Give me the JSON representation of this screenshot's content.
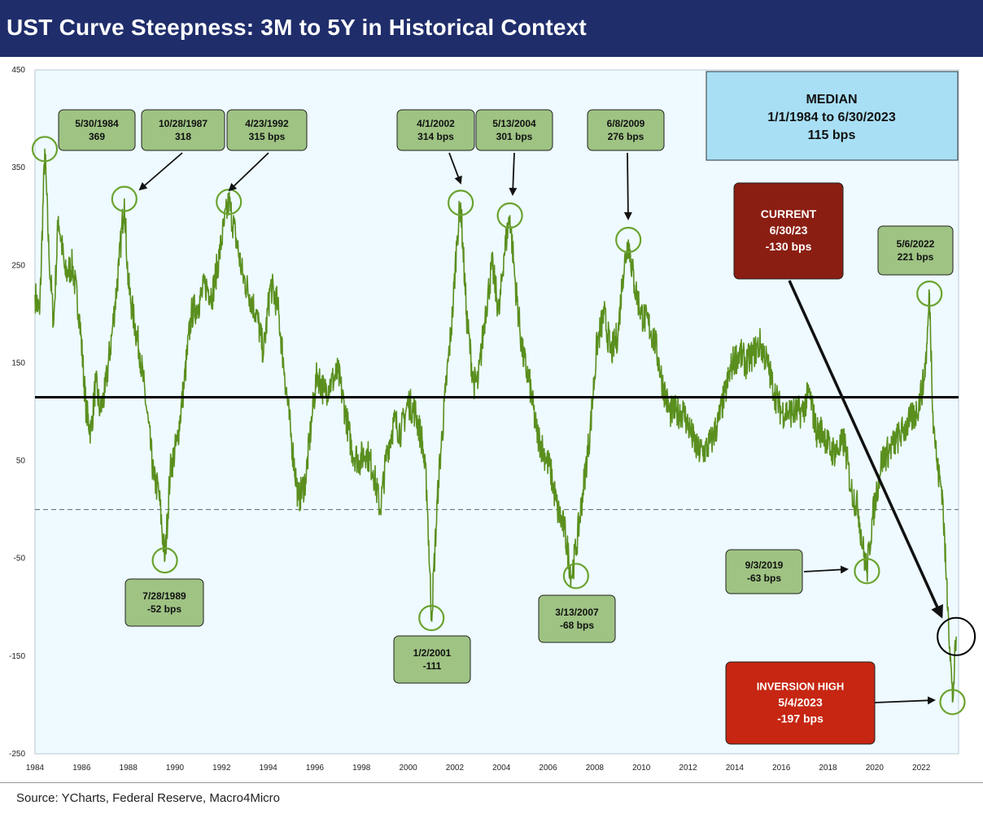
{
  "title": "UST Curve Steepness: 3M to 5Y in Historical Context",
  "source": "Source: YCharts, Federal Reserve, Macro4Micro",
  "colors": {
    "title_bg": "#1f2d6b",
    "plot_bg": "#eefaff",
    "series": "#5a8f1e",
    "label_box": "#9ec383",
    "median_box": "#a8dff5",
    "current_box": "#8b1e12",
    "inversion_box": "#c62612",
    "circle": "#6aa32f"
  },
  "chart_data": {
    "type": "line",
    "title": "UST Curve Steepness: 3M to 5Y in Historical Context",
    "xlabel": "",
    "ylabel": "",
    "xlim": [
      1984,
      2023.6
    ],
    "ylim": [
      -250,
      450
    ],
    "yticks": [
      "450",
      "350",
      "250",
      "150",
      "50",
      "-50",
      "-150",
      "-250"
    ],
    "xticks": [
      "1984",
      "1986",
      "1988",
      "1990",
      "1992",
      "1994",
      "1996",
      "1998",
      "2000",
      "2002",
      "2004",
      "2006",
      "2008",
      "2010",
      "2012",
      "2014",
      "2016",
      "2018",
      "2020",
      "2022"
    ],
    "grid": false,
    "median_value": 115,
    "zero_line": 0,
    "series": [
      {
        "x": [
          1984.0,
          1984.2,
          1984.42,
          1984.6,
          1984.8,
          1985.0,
          1985.3,
          1985.6,
          1985.9,
          1986.2,
          1986.4,
          1986.6,
          1986.8,
          1987.0,
          1987.3,
          1987.6,
          1987.83,
          1988.0,
          1988.2,
          1988.5,
          1988.8,
          1989.1,
          1989.3,
          1989.57,
          1989.8,
          1990.1,
          1990.4,
          1990.7,
          1991.0,
          1991.3,
          1991.6,
          1991.9,
          1992.1,
          1992.31,
          1992.6,
          1992.9,
          1993.2,
          1993.5,
          1993.8,
          1994.1,
          1994.4,
          1994.7,
          1995.0,
          1995.3,
          1995.6,
          1995.9,
          1996.1,
          1996.4,
          1996.7,
          1997.0,
          1997.3,
          1997.6,
          1997.9,
          1998.2,
          1998.5,
          1998.8,
          1999.1,
          1999.4,
          1999.7,
          2000.0,
          2000.3,
          2000.6,
          2000.8,
          2001.0,
          2001.3,
          2001.6,
          2001.9,
          2002.1,
          2002.25,
          2002.5,
          2002.8,
          2003.0,
          2003.3,
          2003.6,
          2003.9,
          2004.1,
          2004.36,
          2004.6,
          2004.9,
          2005.2,
          2005.5,
          2005.8,
          2006.1,
          2006.4,
          2006.7,
          2007.0,
          2007.2,
          2007.5,
          2007.8,
          2008.1,
          2008.4,
          2008.7,
          2009.0,
          2009.2,
          2009.44,
          2009.7,
          2010.0,
          2010.3,
          2010.6,
          2010.9,
          2011.2,
          2011.5,
          2011.8,
          2012.1,
          2012.4,
          2012.7,
          2013.0,
          2013.3,
          2013.6,
          2013.9,
          2014.2,
          2014.5,
          2014.8,
          2015.1,
          2015.4,
          2015.7,
          2016.0,
          2016.3,
          2016.6,
          2016.9,
          2017.2,
          2017.5,
          2017.8,
          2018.1,
          2018.4,
          2018.7,
          2019.0,
          2019.3,
          2019.5,
          2019.67,
          2019.9,
          2020.1,
          2020.3,
          2020.6,
          2020.9,
          2021.2,
          2021.5,
          2021.8,
          2022.1,
          2022.25,
          2022.35,
          2022.5,
          2022.7,
          2022.9,
          2023.05,
          2023.15,
          2023.34,
          2023.5
        ],
        "values": [
          220,
          200,
          369,
          260,
          190,
          300,
          240,
          250,
          200,
          100,
          80,
          130,
          100,
          120,
          180,
          250,
          318,
          230,
          200,
          160,
          100,
          30,
          20,
          -52,
          40,
          70,
          130,
          200,
          210,
          230,
          220,
          260,
          290,
          315,
          280,
          240,
          220,
          200,
          160,
          230,
          210,
          140,
          70,
          10,
          30,
          100,
          140,
          120,
          130,
          140,
          100,
          60,
          50,
          60,
          40,
          0,
          60,
          90,
          80,
          110,
          100,
          70,
          20,
          -111,
          30,
          120,
          200,
          280,
          314,
          200,
          130,
          130,
          200,
          250,
          200,
          260,
          301,
          230,
          160,
          130,
          80,
          60,
          40,
          0,
          -20,
          -68,
          -40,
          20,
          80,
          170,
          200,
          160,
          180,
          240,
          276,
          230,
          200,
          190,
          170,
          130,
          100,
          100,
          100,
          80,
          60,
          60,
          70,
          90,
          120,
          150,
          160,
          150,
          160,
          170,
          150,
          120,
          100,
          100,
          100,
          100,
          120,
          80,
          80,
          60,
          60,
          70,
          20,
          0,
          -40,
          -63,
          -10,
          20,
          50,
          60,
          70,
          80,
          90,
          100,
          130,
          170,
          221,
          100,
          40,
          20,
          -60,
          -100,
          -197,
          -130
        ]
      }
    ],
    "annotations": [
      {
        "label": "5/30/1984",
        "value_text": "369",
        "x": 1984.42,
        "y": 369
      },
      {
        "label": "10/28/1987",
        "value_text": "318",
        "x": 1987.83,
        "y": 318
      },
      {
        "label": "4/23/1992",
        "value_text": "315 bps",
        "x": 1992.31,
        "y": 315
      },
      {
        "label": "7/28/1989",
        "value_text": "-52 bps",
        "x": 1989.57,
        "y": -52
      },
      {
        "label": "1/2/2001",
        "value_text": "-111",
        "x": 2001.0,
        "y": -111
      },
      {
        "label": "4/1/2002",
        "value_text": "314 bps",
        "x": 2002.25,
        "y": 314
      },
      {
        "label": "5/13/2004",
        "value_text": "301 bps",
        "x": 2004.36,
        "y": 301
      },
      {
        "label": "3/13/2007",
        "value_text": "-68 bps",
        "x": 2007.2,
        "y": -68
      },
      {
        "label": "6/8/2009",
        "value_text": "276 bps",
        "x": 2009.44,
        "y": 276
      },
      {
        "label": "9/3/2019",
        "value_text": "-63 bps",
        "x": 2019.67,
        "y": -63
      },
      {
        "label": "5/6/2022",
        "value_text": "221 bps",
        "x": 2022.35,
        "y": 221
      },
      {
        "label": "INVERSION HIGH",
        "value_text": "5/4/2023",
        "extra_text": "-197 bps",
        "x": 2023.34,
        "y": -197
      },
      {
        "label": "CURRENT",
        "value_text": "6/30/23",
        "extra_text": "-130 bps",
        "x": 2023.5,
        "y": -130
      }
    ],
    "median_box": {
      "line1": "MEDIAN",
      "line2": "1/1/1984 to 6/30/2023",
      "line3": "115 bps"
    }
  }
}
